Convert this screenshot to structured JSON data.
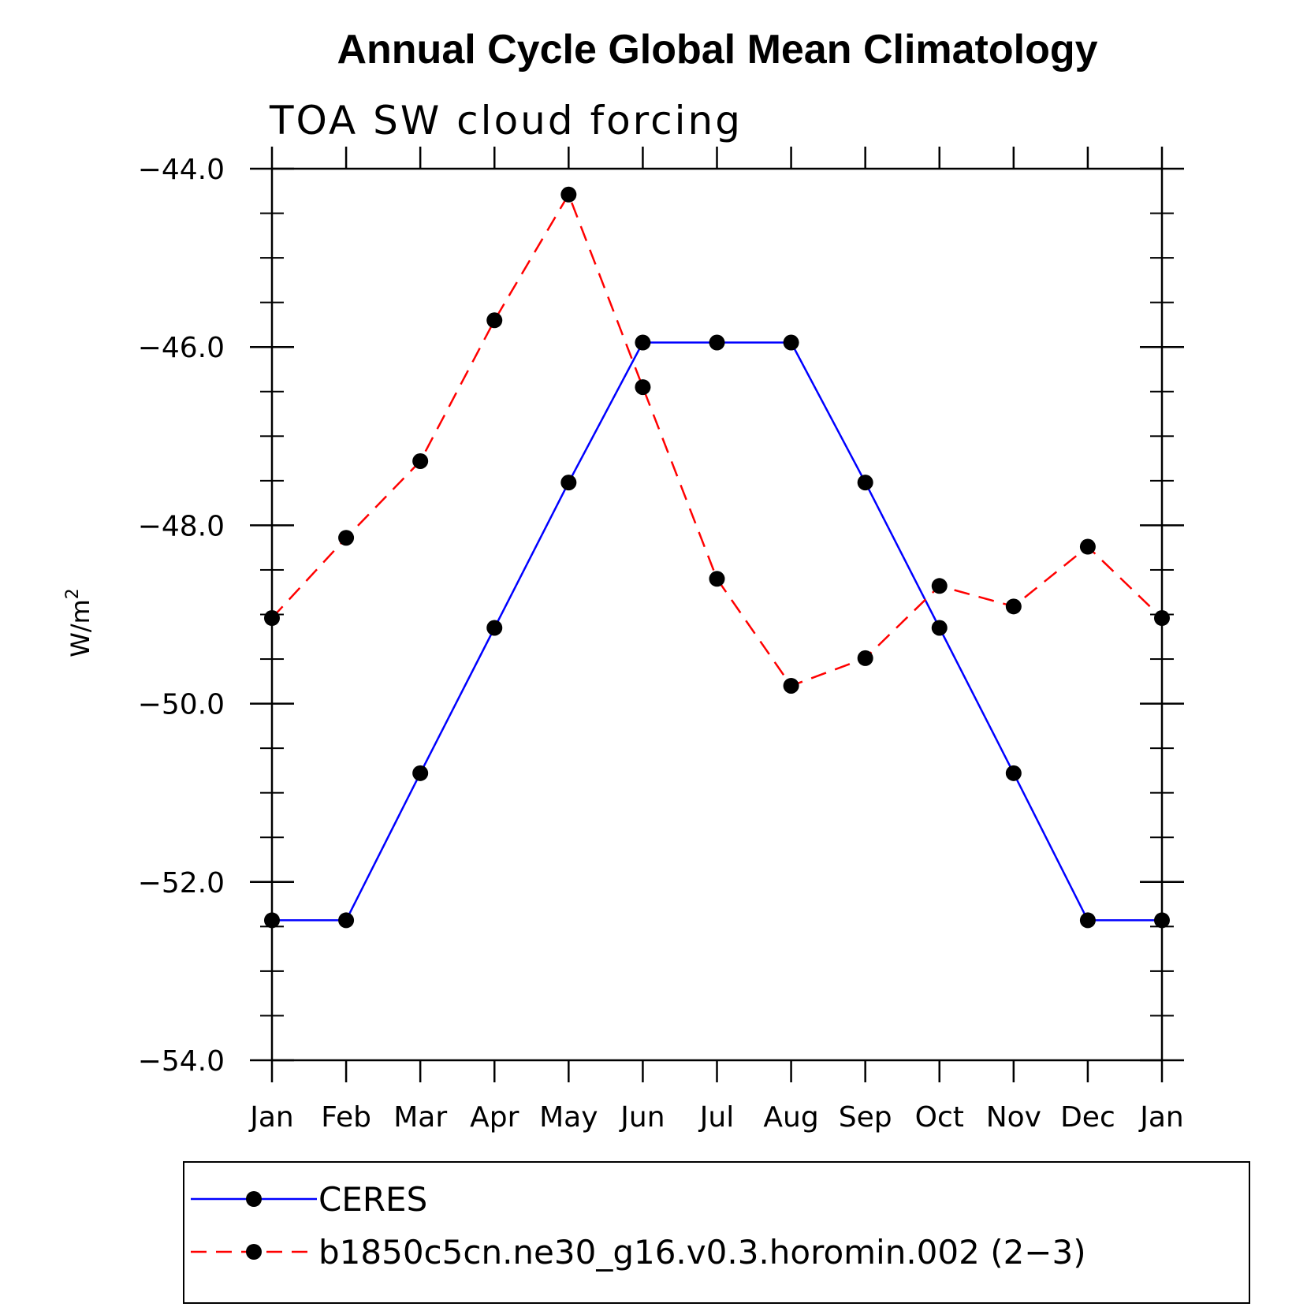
{
  "chart_data": {
    "type": "line",
    "title": "Annual Cycle Global Mean Climatology",
    "subtitle": "TOA SW cloud forcing",
    "ylabel": "W/m",
    "ylabel_superscript": "2",
    "categories": [
      "Jan",
      "Feb",
      "Mar",
      "Apr",
      "May",
      "Jun",
      "Jul",
      "Aug",
      "Sep",
      "Oct",
      "Nov",
      "Dec",
      "Jan"
    ],
    "ylim": [
      -54.0,
      -44.0
    ],
    "yticks": [
      "-44.0",
      "-46.0",
      "-48.0",
      "-50.0",
      "-52.0",
      "-54.0"
    ],
    "ytick_values": [
      -44,
      -46,
      -48,
      -50,
      -52,
      -54
    ],
    "grid": false,
    "legend_placement": "bottom",
    "series": [
      {
        "name": "CERES",
        "color": "#0000ff",
        "dash": "solid",
        "marker": "filled-circle",
        "values": [
          -52.43,
          -52.43,
          -50.78,
          -49.15,
          -47.52,
          -45.95,
          -45.95,
          -45.95,
          -47.52,
          -49.15,
          -50.78,
          -52.43,
          -52.43
        ]
      },
      {
        "name": "b1850c5cn.ne30_g16.v0.3.horomin.002 (2−3)",
        "color": "#ff0000",
        "dash": "dashed",
        "marker": "filled-circle",
        "values": [
          -49.04,
          -48.14,
          -47.28,
          -45.7,
          -44.29,
          -46.45,
          -48.6,
          -49.8,
          -49.49,
          -48.68,
          -48.91,
          -48.24,
          -49.04
        ]
      }
    ]
  }
}
